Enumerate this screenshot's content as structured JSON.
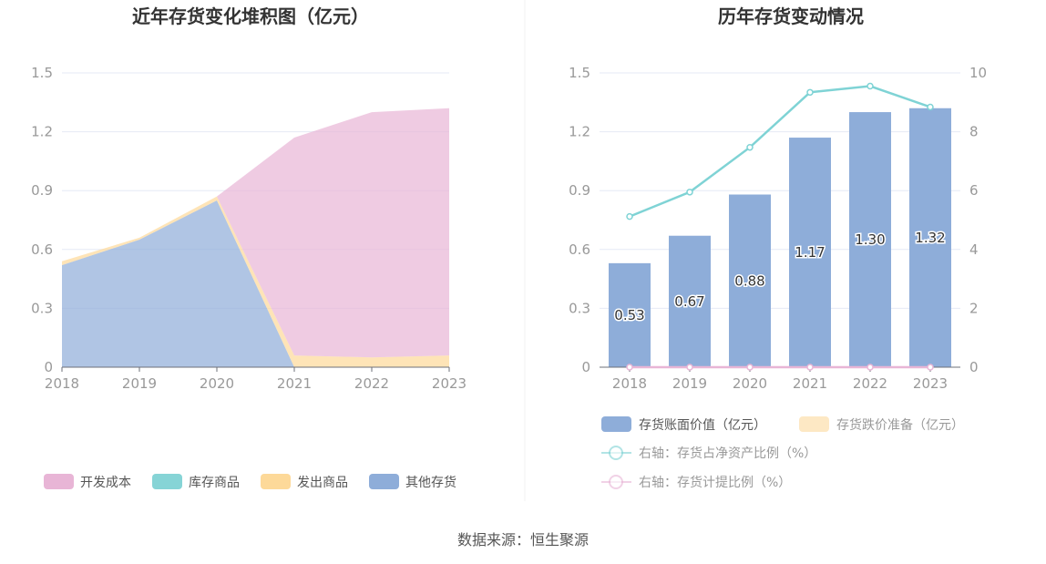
{
  "source": "数据来源：恒生聚源",
  "chart_data": [
    {
      "type": "area",
      "stacked": true,
      "title": "近年存货变化堆积图（亿元）",
      "categories": [
        "2018",
        "2019",
        "2020",
        "2021",
        "2022",
        "2023"
      ],
      "ylim": [
        0,
        1.5
      ],
      "yticks": [
        "0",
        "0.3",
        "0.6",
        "0.9",
        "1.2",
        "1.5"
      ],
      "grid": true,
      "legend_placement": "bottom",
      "series": [
        {
          "name": "其他存货",
          "color": "#8eadd9",
          "values": [
            0.52,
            0.65,
            0.85,
            0,
            0,
            0
          ]
        },
        {
          "name": "库存商品",
          "color": "#86d4d6",
          "values": [
            0,
            0,
            0,
            0,
            0,
            0
          ]
        },
        {
          "name": "发出商品",
          "color": "#fdd999",
          "values": [
            0.02,
            0.01,
            0.02,
            0.06,
            0.05,
            0.06
          ]
        },
        {
          "name": "开发成本",
          "color": "#e8b5d6",
          "values": [
            0,
            0,
            0,
            1.11,
            1.25,
            1.26
          ]
        }
      ],
      "legend_order": [
        "开发成本",
        "库存商品",
        "发出商品",
        "其他存货"
      ]
    },
    {
      "type": "bar",
      "title": "历年存货变动情况",
      "categories": [
        "2018",
        "2019",
        "2020",
        "2021",
        "2022",
        "2023"
      ],
      "ylim": [
        0,
        1.5
      ],
      "yticks": [
        "0",
        "0.3",
        "0.6",
        "0.9",
        "1.2",
        "1.5"
      ],
      "y2lim": [
        0,
        10
      ],
      "y2ticks": [
        "0",
        "2",
        "4",
        "6",
        "8",
        "10"
      ],
      "grid": true,
      "legend_placement": "bottom",
      "bars": [
        {
          "name": "存货账面价值（亿元）",
          "color": "#8eadd9",
          "values": [
            0.53,
            0.67,
            0.88,
            1.17,
            1.3,
            1.32
          ],
          "labels": [
            "0.53",
            "0.67",
            "0.88",
            "1.17",
            "1.30",
            "1.32"
          ]
        },
        {
          "name": "存货跌价准备（亿元）",
          "color": "#fde8c4",
          "values": [
            0,
            0,
            0,
            0,
            0,
            0
          ]
        }
      ],
      "lines": [
        {
          "name": "右轴：存货占净资产比例（%）",
          "color": "#7fd3d5",
          "axis": "right",
          "values": [
            5.12,
            5.95,
            7.47,
            9.34,
            9.55,
            8.84
          ]
        },
        {
          "name": "右轴：存货计提比例（%）",
          "color": "#e8b5d6",
          "axis": "right",
          "values": [
            0,
            0,
            0,
            0,
            0,
            0
          ]
        }
      ]
    }
  ]
}
